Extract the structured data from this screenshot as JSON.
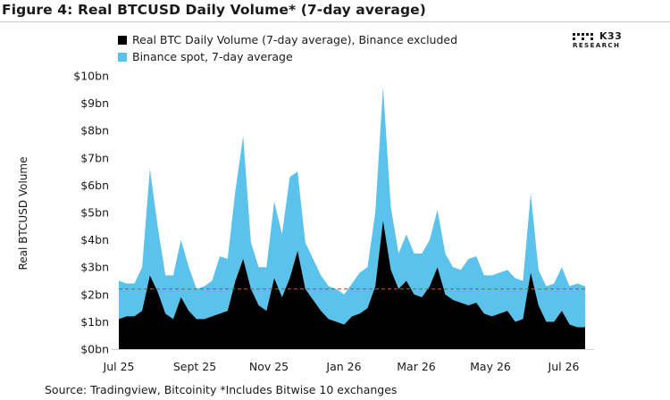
{
  "header": {
    "title": "Figure 4: Real BTCUSD Daily Volume* (7-day average)"
  },
  "logo": {
    "brand": "K33",
    "subtitle": "RESEARCH"
  },
  "footer": {
    "source": "Source: Tradingview, Bitcoinity *Includes Bitwise 10 exchanges"
  },
  "colors": {
    "binance_series": "#5bc2eb",
    "real_volume_series": "#000000",
    "reference_line": "#d2443c"
  },
  "chart_data": {
    "type": "area",
    "title": "Figure 4: Real BTCUSD Daily Volume* (7-day average)",
    "ylabel": "Real BTCUSD Volume",
    "xlabel": "",
    "ylim": [
      0,
      10
    ],
    "y_unit": "bn USD",
    "yticks": [
      "$0bn",
      "$1bn",
      "$2bn",
      "$3bn",
      "$4bn",
      "$5bn",
      "$6bn",
      "$7bn",
      "$8bn",
      "$9bn",
      "$10bn"
    ],
    "xticks": [
      "Jul 25",
      "Sept 25",
      "Nov 25",
      "Jan 26",
      "Mar 26",
      "May 26",
      "Jul 26"
    ],
    "stacked": true,
    "legend_position": "top-left",
    "grid": false,
    "reference_line": {
      "value": 2.2,
      "style": "dashed"
    },
    "x_start": "2025-07-01",
    "x_step_days": 7,
    "series": [
      {
        "name": "Real BTC Daily Volume (7-day average), Binance excluded",
        "values": [
          1.1,
          1.2,
          1.2,
          1.4,
          2.7,
          2.1,
          1.3,
          1.1,
          1.9,
          1.4,
          1.1,
          1.1,
          1.2,
          1.3,
          1.4,
          2.5,
          3.3,
          2.2,
          1.6,
          1.4,
          2.6,
          1.9,
          2.6,
          3.6,
          2.2,
          1.8,
          1.4,
          1.1,
          1.0,
          0.9,
          1.2,
          1.3,
          1.5,
          2.3,
          4.7,
          2.9,
          2.2,
          2.5,
          2.0,
          1.9,
          2.3,
          3.0,
          2.0,
          1.8,
          1.7,
          1.6,
          1.7,
          1.3,
          1.2,
          1.3,
          1.4,
          1.0,
          1.1,
          2.8,
          1.6,
          1.0,
          1.0,
          1.4,
          0.9,
          0.8,
          0.8
        ]
      },
      {
        "name": "Binance spot, 7-day average",
        "values": [
          1.4,
          1.2,
          1.2,
          1.6,
          3.9,
          2.4,
          1.4,
          1.6,
          2.1,
          1.6,
          1.1,
          1.2,
          1.3,
          2.1,
          1.9,
          3.3,
          4.5,
          1.7,
          1.4,
          1.6,
          2.8,
          2.3,
          3.7,
          2.9,
          1.7,
          1.5,
          1.3,
          1.2,
          1.2,
          1.1,
          1.2,
          1.5,
          1.5,
          2.7,
          4.9,
          2.3,
          1.3,
          1.7,
          1.5,
          1.6,
          1.7,
          2.1,
          1.5,
          1.2,
          1.2,
          1.7,
          1.7,
          1.4,
          1.5,
          1.5,
          1.5,
          1.6,
          1.4,
          2.9,
          1.3,
          1.3,
          1.4,
          1.6,
          1.4,
          1.6,
          1.5
        ]
      }
    ]
  }
}
